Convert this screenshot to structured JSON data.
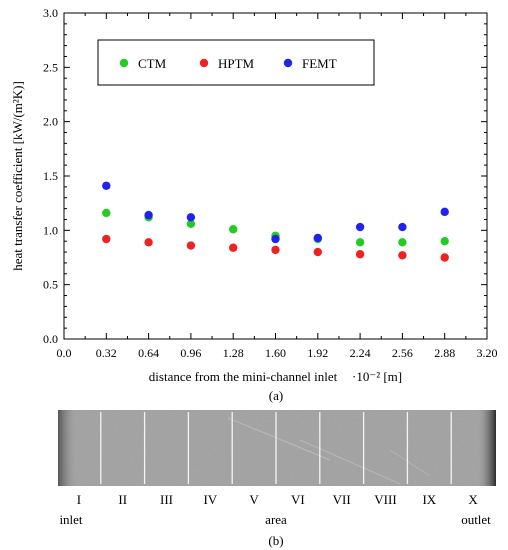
{
  "chart_data": {
    "type": "scatter",
    "xlabel": "distance from the mini-channel inlet",
    "xlabel_unit": "·10⁻²   [m]",
    "ylabel": "heat transfer coefficient  [kW/(m²K)]",
    "caption": "(a)",
    "xlim": [
      0.0,
      3.2
    ],
    "ylim": [
      0.0,
      3.0
    ],
    "xticks": [
      "0.0",
      "0.32",
      "0.64",
      "0.96",
      "1.28",
      "1.60",
      "1.92",
      "2.24",
      "2.56",
      "2.88",
      "3.20"
    ],
    "yticks": [
      "0.0",
      "0.5",
      "1.0",
      "1.5",
      "2.0",
      "2.5",
      "3.0"
    ],
    "x": [
      0.32,
      0.64,
      0.96,
      1.28,
      1.6,
      1.92,
      2.24,
      2.56,
      2.88
    ],
    "legend_position": "top-center",
    "series": [
      {
        "name": "CTM",
        "color": "#22cc22",
        "values": [
          1.16,
          1.12,
          1.06,
          1.01,
          0.95,
          0.92,
          0.89,
          0.89,
          0.9
        ]
      },
      {
        "name": "HPTM",
        "color": "#ee2222",
        "values": [
          0.92,
          0.89,
          0.86,
          0.84,
          0.82,
          0.8,
          0.78,
          0.77,
          0.75
        ]
      },
      {
        "name": "FEMT",
        "color": "#2222ee",
        "values": [
          1.41,
          1.14,
          1.12,
          null,
          0.92,
          0.93,
          1.03,
          1.03,
          1.17
        ]
      }
    ]
  },
  "strip": {
    "labels": [
      "I",
      "II",
      "III",
      "IV",
      "V",
      "VI",
      "VII",
      "VIII",
      "IX",
      "X"
    ],
    "inlet_label": "inlet",
    "area_label": "area",
    "outlet_label": "outlet",
    "caption": "(b)"
  }
}
